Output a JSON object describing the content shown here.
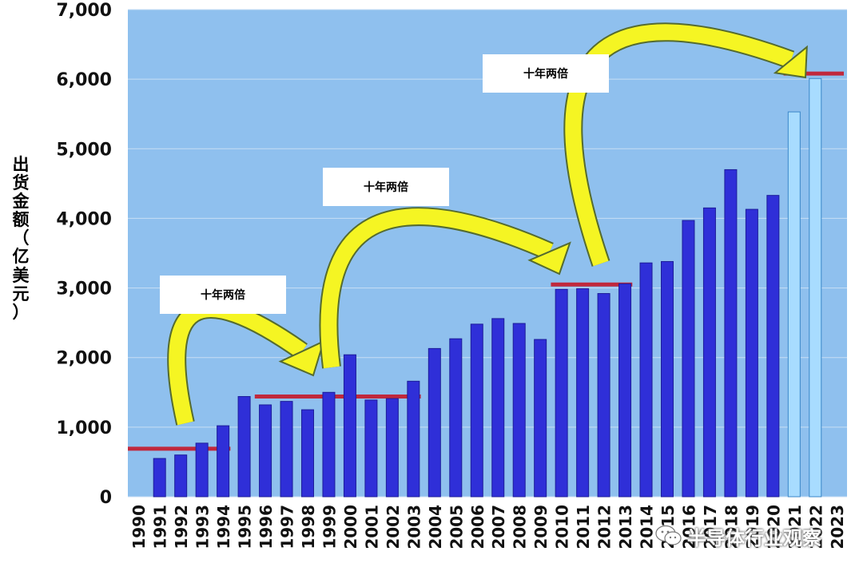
{
  "chart_data": {
    "type": "bar",
    "title": "",
    "xlabel": "",
    "ylabel": "出货金额（亿美元）",
    "ylabel_chars": [
      "出",
      "货",
      "金",
      "额",
      "（",
      "亿",
      "美",
      "元",
      "）"
    ],
    "ylim": [
      0,
      7000
    ],
    "yticks": [
      "0",
      "1,000",
      "2,000",
      "3,000",
      "4,000",
      "5,000",
      "6,000",
      "7,000"
    ],
    "ytick_values": [
      0,
      1000,
      2000,
      3000,
      4000,
      5000,
      6000,
      7000
    ],
    "tick_labels": [
      "1990",
      "1991",
      "1992",
      "1993",
      "1994",
      "1995",
      "1996",
      "1997",
      "1998",
      "1999",
      "2000",
      "2001",
      "2002",
      "2003",
      "2004",
      "2005",
      "2006",
      "2007",
      "2008",
      "2009",
      "2010",
      "2011",
      "2012",
      "2013",
      "2014",
      "2015",
      "2016",
      "2017",
      "2018",
      "2019",
      "2020",
      "2021",
      "2022",
      "2023"
    ],
    "grid": true,
    "colors": {
      "actual": "#2f2fd8",
      "forecast": "#a8dcff",
      "plot_bg": "#8fc0ee",
      "level_line": "#c0283c",
      "arrow": "#f5f523"
    },
    "bars": [
      {
        "x": "1991",
        "value": 550
      },
      {
        "x": "1992",
        "value": 600
      },
      {
        "x": "1993",
        "value": 770
      },
      {
        "x": "1994",
        "value": 1020
      },
      {
        "x": "1995",
        "value": 1440
      },
      {
        "x": "1996",
        "value": 1320
      },
      {
        "x": "1997",
        "value": 1370
      },
      {
        "x": "1998",
        "value": 1250
      },
      {
        "x": "1999",
        "value": 1500
      },
      {
        "x": "2000",
        "value": 2040
      },
      {
        "x": "2001",
        "value": 1390
      },
      {
        "x": "2002",
        "value": 1410
      },
      {
        "x": "2003",
        "value": 1660
      },
      {
        "x": "2004",
        "value": 2130
      },
      {
        "x": "2005",
        "value": 2270
      },
      {
        "x": "2006",
        "value": 2480
      },
      {
        "x": "2007",
        "value": 2560
      },
      {
        "x": "2008",
        "value": 2490
      },
      {
        "x": "2009",
        "value": 2260
      },
      {
        "x": "2010",
        "value": 2980
      },
      {
        "x": "2011",
        "value": 2990
      },
      {
        "x": "2012",
        "value": 2920
      },
      {
        "x": "2013",
        "value": 3060
      },
      {
        "x": "2014",
        "value": 3360
      },
      {
        "x": "2015",
        "value": 3380
      },
      {
        "x": "2016",
        "value": 3970
      },
      {
        "x": "2017",
        "value": 4150
      },
      {
        "x": "2018",
        "value": 4700
      },
      {
        "x": "2019",
        "value": 4130
      },
      {
        "x": "2020",
        "value": 4330
      },
      {
        "x": "2021",
        "value": 5530,
        "forecast": true
      },
      {
        "x": "2022",
        "value": 6010,
        "forecast": true
      }
    ],
    "level_lines": [
      {
        "value": 690,
        "from": "1990",
        "to": "1994"
      },
      {
        "value": 1440,
        "from": "1996",
        "to": "2003"
      },
      {
        "value": 3050,
        "from": "2010",
        "to": "2013"
      },
      {
        "value": 6080,
        "from": "2021",
        "to": "2023"
      }
    ],
    "annotations": [
      {
        "text": "十年两倍"
      },
      {
        "text": "十年两倍"
      },
      {
        "text": "十年两倍"
      }
    ]
  },
  "watermark": {
    "text": "半导体行业观察",
    "icon": "wechat-icon"
  }
}
